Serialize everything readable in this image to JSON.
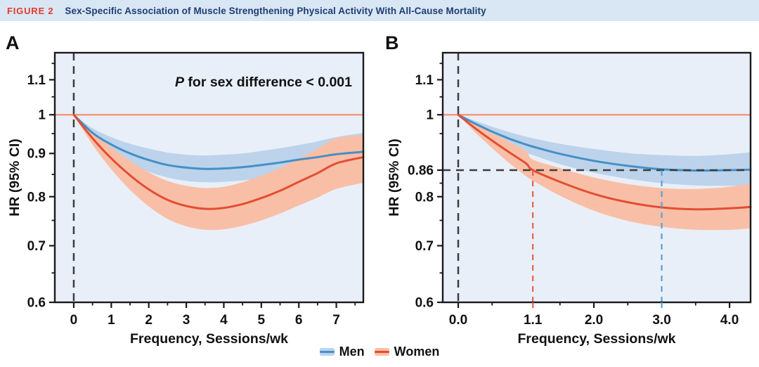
{
  "header": {
    "figure_label": "FIGURE 2",
    "title": "Sex-Specific Association of Muscle Strengthening Physical Activity With All-Cause Mortality"
  },
  "colors": {
    "header_bg": "#d9e6f3",
    "figure_label_red": "#e23b2e",
    "title_navy": "#1d3e73",
    "plot_bg": "#e9eff8",
    "axis": "#1a1a1a",
    "tick_label": "#111111",
    "men_line": "#4590c7",
    "men_band": "#bcd3eb",
    "women_line": "#e34e33",
    "women_band": "#f9bfa6",
    "reference_line": "#f39a82",
    "dashed_black": "#3d3d3d",
    "guide_red": "#e8604a",
    "guide_blue": "#58a0d8"
  },
  "legend": {
    "items": [
      {
        "name": "Men",
        "band_color": "#bcd3eb",
        "line_color": "#4590c7"
      },
      {
        "name": "Women",
        "band_color": "#f9bfa6",
        "line_color": "#e34e33"
      }
    ]
  },
  "chart_data": [
    {
      "type": "line",
      "panel_label": "A",
      "xlabel": "Frequency, Sessions/wk",
      "ylabel": "HR (95% CI)",
      "annotation": {
        "italic": "P",
        "text": " for sex difference < 0.001"
      },
      "x_range": [
        -0.505,
        7.72
      ],
      "y_range": [
        0.6,
        1.184
      ],
      "y_scale": "log",
      "reference_line_y": 1.0,
      "zero_dashed_x": 0,
      "x_major_ticks": [
        {
          "v": 0,
          "label": "0"
        },
        {
          "v": 1,
          "label": "1"
        },
        {
          "v": 2,
          "label": "2"
        },
        {
          "v": 3,
          "label": "3"
        },
        {
          "v": 4,
          "label": "4"
        },
        {
          "v": 5,
          "label": "5"
        },
        {
          "v": 6,
          "label": "6"
        },
        {
          "v": 7,
          "label": "7"
        }
      ],
      "x_minor_ticks": [
        0.5,
        1.5,
        2.5,
        3.5,
        4.5,
        5.5,
        6.5,
        7.5
      ],
      "y_major_ticks": [
        {
          "v": 1.1,
          "label": "1.1"
        },
        {
          "v": 1.0,
          "label": "1"
        },
        {
          "v": 0.9,
          "label": "0.9"
        },
        {
          "v": 0.8,
          "label": "0.8"
        },
        {
          "v": 0.7,
          "label": "0.7"
        },
        {
          "v": 0.6,
          "label": "0.6"
        }
      ],
      "y_minor_ticks": [
        1.15,
        1.05,
        0.95,
        0.85,
        0.75,
        0.65
      ],
      "guides": [],
      "series": [
        {
          "name": "Men",
          "x": [
            0,
            0.5,
            1,
            1.5,
            2,
            2.5,
            3,
            3.5,
            4,
            4.5,
            5,
            5.5,
            6,
            6.5,
            7,
            7.72
          ],
          "y": [
            1,
            0.952,
            0.922,
            0.9,
            0.884,
            0.872,
            0.866,
            0.863,
            0.864,
            0.867,
            0.872,
            0.878,
            0.885,
            0.891,
            0.898,
            0.904
          ],
          "ci_lower": [
            1,
            0.94,
            0.903,
            0.876,
            0.856,
            0.843,
            0.835,
            0.832,
            0.833,
            0.836,
            0.84,
            0.845,
            0.85,
            0.855,
            0.859,
            0.862
          ],
          "ci_upper": [
            1,
            0.964,
            0.941,
            0.924,
            0.912,
            0.902,
            0.897,
            0.895,
            0.897,
            0.9,
            0.906,
            0.913,
            0.921,
            0.93,
            0.941,
            0.952
          ]
        },
        {
          "name": "Women",
          "x": [
            0,
            0.5,
            1,
            1.5,
            2,
            2.5,
            3,
            3.5,
            4,
            4.5,
            5,
            5.5,
            6,
            6.5,
            7,
            7.72
          ],
          "y": [
            1,
            0.938,
            0.888,
            0.848,
            0.816,
            0.793,
            0.78,
            0.774,
            0.776,
            0.784,
            0.797,
            0.813,
            0.833,
            0.853,
            0.876,
            0.891
          ],
          "ci_lower": [
            1,
            0.922,
            0.862,
            0.815,
            0.779,
            0.753,
            0.738,
            0.731,
            0.732,
            0.739,
            0.75,
            0.764,
            0.781,
            0.798,
            0.817,
            0.831
          ],
          "ci_upper": [
            1,
            0.954,
            0.915,
            0.882,
            0.855,
            0.835,
            0.824,
            0.819,
            0.822,
            0.832,
            0.847,
            0.865,
            0.888,
            0.912,
            0.938,
            0.946
          ]
        }
      ]
    },
    {
      "type": "line",
      "panel_label": "B",
      "xlabel": "Frequency, Sessions/wk",
      "ylabel": "HR (95% CI)",
      "annotation": null,
      "x_range": [
        -0.228,
        4.31
      ],
      "y_range": [
        0.6,
        1.184
      ],
      "y_scale": "log",
      "reference_line_y": 1.0,
      "zero_dashed_x": 0,
      "x_major_ticks": [
        {
          "v": 0,
          "label": "0.0"
        },
        {
          "v": 1.1,
          "label": "1.1",
          "color": "#e8604a"
        },
        {
          "v": 2,
          "label": "2.0"
        },
        {
          "v": 3,
          "label": "3.0",
          "color": "#58a0d8"
        },
        {
          "v": 4,
          "label": "4.0"
        }
      ],
      "x_minor_ticks": [
        0.5,
        1.5,
        2.5,
        3.5
      ],
      "y_major_ticks": [
        {
          "v": 1.1,
          "label": "1.1"
        },
        {
          "v": 1.0,
          "label": "1"
        },
        {
          "v": 0.86,
          "label": "0.86"
        },
        {
          "v": 0.8,
          "label": "0.8"
        },
        {
          "v": 0.7,
          "label": "0.7"
        },
        {
          "v": 0.6,
          "label": "0.6"
        }
      ],
      "y_minor_ticks": [
        1.15,
        1.05,
        0.95,
        0.83,
        0.75,
        0.65
      ],
      "guides": [
        {
          "type": "h",
          "y": 0.86,
          "color": "#3d3d3d",
          "dash": "11 8",
          "width": 2.5
        },
        {
          "type": "v",
          "x": 1.1,
          "to_y": 0.86,
          "color": "#e8604a",
          "dash": "8 7",
          "width": 2.2
        },
        {
          "type": "v",
          "x": 3.0,
          "to_y": 0.86,
          "color": "#58a0d8",
          "dash": "8 7",
          "width": 2.2
        }
      ],
      "series": [
        {
          "name": "Men",
          "x": [
            0,
            0.25,
            0.5,
            0.75,
            1.0,
            1.1,
            1.5,
            2.0,
            2.5,
            3.0,
            3.5,
            4.0,
            4.31
          ],
          "y": [
            1,
            0.976,
            0.955,
            0.937,
            0.922,
            0.917,
            0.899,
            0.882,
            0.87,
            0.862,
            0.859,
            0.86,
            0.861
          ],
          "ci_lower": [
            1,
            0.968,
            0.942,
            0.92,
            0.902,
            0.896,
            0.874,
            0.854,
            0.84,
            0.83,
            0.825,
            0.824,
            0.824
          ],
          "ci_upper": [
            1,
            0.984,
            0.968,
            0.954,
            0.942,
            0.938,
            0.924,
            0.911,
            0.901,
            0.896,
            0.894,
            0.898,
            0.903
          ]
        },
        {
          "name": "Women",
          "x": [
            0,
            0.25,
            0.5,
            0.75,
            1.0,
            1.1,
            1.5,
            2.0,
            2.5,
            3.0,
            3.5,
            4.0,
            4.31
          ],
          "y": [
            1,
            0.964,
            0.932,
            0.903,
            0.876,
            0.86,
            0.833,
            0.806,
            0.788,
            0.777,
            0.773,
            0.775,
            0.778
          ],
          "ci_lower": [
            1,
            0.953,
            0.913,
            0.877,
            0.846,
            0.836,
            0.802,
            0.77,
            0.749,
            0.737,
            0.731,
            0.731,
            0.734
          ],
          "ci_upper": [
            1,
            0.975,
            0.951,
            0.929,
            0.906,
            0.885,
            0.865,
            0.843,
            0.828,
            0.819,
            0.817,
            0.822,
            0.829
          ]
        }
      ]
    }
  ]
}
